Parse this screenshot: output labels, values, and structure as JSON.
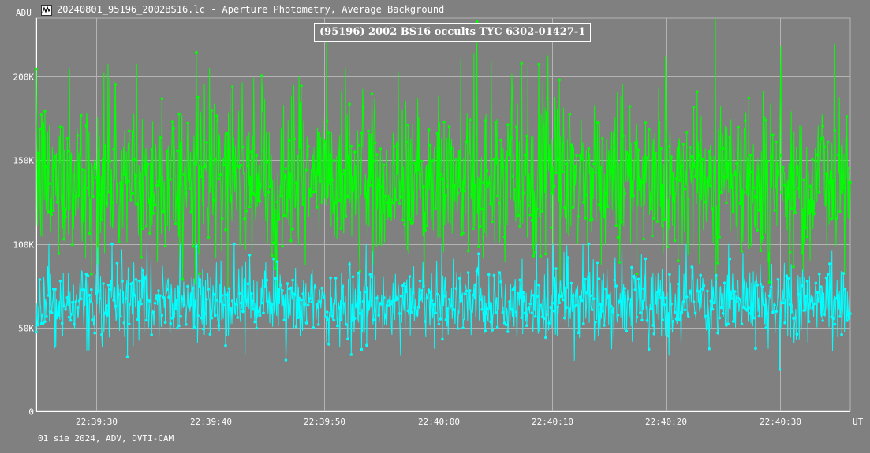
{
  "window": {
    "title": "20240801_95196_2002BS16.lc - Aperture Photometry, Average Background",
    "icon": "lightcurve-app-icon"
  },
  "footer": {
    "text": "01 sie 2024, ADV, DVTI-CAM"
  },
  "chart_data": {
    "type": "line",
    "title": "(95196) 2002 BS16 occults TYC 6302-01427-1",
    "ylabel": "ADU",
    "xlabel": "UT",
    "ylim": [
      0,
      235000
    ],
    "xlim": [
      "22:39:24.7",
      "22:40:36.2"
    ],
    "y_ticks": [
      {
        "value": 0,
        "label": "0"
      },
      {
        "value": 50000,
        "label": "50K"
      },
      {
        "value": 100000,
        "label": "100K"
      },
      {
        "value": 150000,
        "label": "150K"
      },
      {
        "value": 200000,
        "label": "200K"
      }
    ],
    "x_ticks": [
      {
        "value": "22:39:30",
        "label": "22:39:30"
      },
      {
        "value": "22:39:40",
        "label": "22:39:40"
      },
      {
        "value": "22:39:50",
        "label": "22:39:50"
      },
      {
        "value": "22:40:00",
        "label": "22:40:00"
      },
      {
        "value": "22:40:10",
        "label": "22:40:10"
      },
      {
        "value": "22:40:20",
        "label": "22:40:20"
      },
      {
        "value": "22:40:30",
        "label": "22:40:30"
      }
    ],
    "grid": true,
    "series": [
      {
        "color": "#00ff00",
        "approx_mean": 138000,
        "approx_sd": 24000,
        "approx_min": 55000,
        "approx_max": 235000,
        "points": 1420
      },
      {
        "color": "#00ffff",
        "approx_mean": 64000,
        "approx_sd": 11000,
        "approx_min": 25000,
        "approx_max": 100000,
        "points": 1420
      }
    ]
  },
  "colors": {
    "background": "#808080",
    "grid": "#b4b4b4",
    "axis": "#ffffff",
    "green_series": "#00ff00",
    "cyan_series": "#00ffff"
  }
}
